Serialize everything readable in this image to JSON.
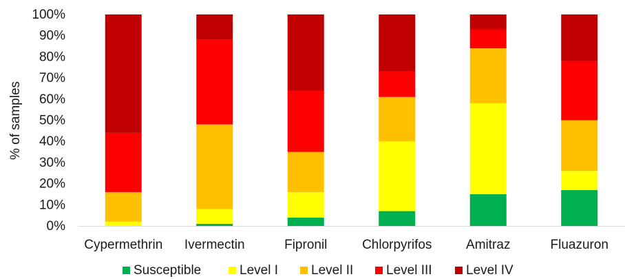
{
  "chart_data": {
    "type": "bar",
    "stacked": true,
    "percent": true,
    "title": "",
    "xlabel": "",
    "ylabel": "% of samples",
    "ylim": [
      0,
      100
    ],
    "yticks": [
      "0%",
      "10%",
      "20%",
      "30%",
      "40%",
      "50%",
      "60%",
      "70%",
      "80%",
      "90%",
      "100%"
    ],
    "grid": false,
    "legend_position": "bottom",
    "categories": [
      "Cypermethrin",
      "Ivermectin",
      "Fipronil",
      "Chlorpyrifos",
      "Amitraz",
      "Fluazuron"
    ],
    "series": [
      {
        "name": "Susceptible",
        "color": "#00b050",
        "values": [
          0,
          1,
          4,
          7,
          15,
          17
        ]
      },
      {
        "name": "Level I",
        "color": "#ffff00",
        "values": [
          2,
          7,
          12,
          33,
          43,
          9
        ]
      },
      {
        "name": "Level II",
        "color": "#ffc000",
        "values": [
          14,
          40,
          19,
          21,
          26,
          24
        ]
      },
      {
        "name": "Level III",
        "color": "#ff0000",
        "values": [
          28,
          40,
          29,
          12,
          9,
          28
        ]
      },
      {
        "name": "Level IV",
        "color": "#c00000",
        "values": [
          56,
          12,
          36,
          27,
          7,
          22
        ]
      }
    ]
  }
}
